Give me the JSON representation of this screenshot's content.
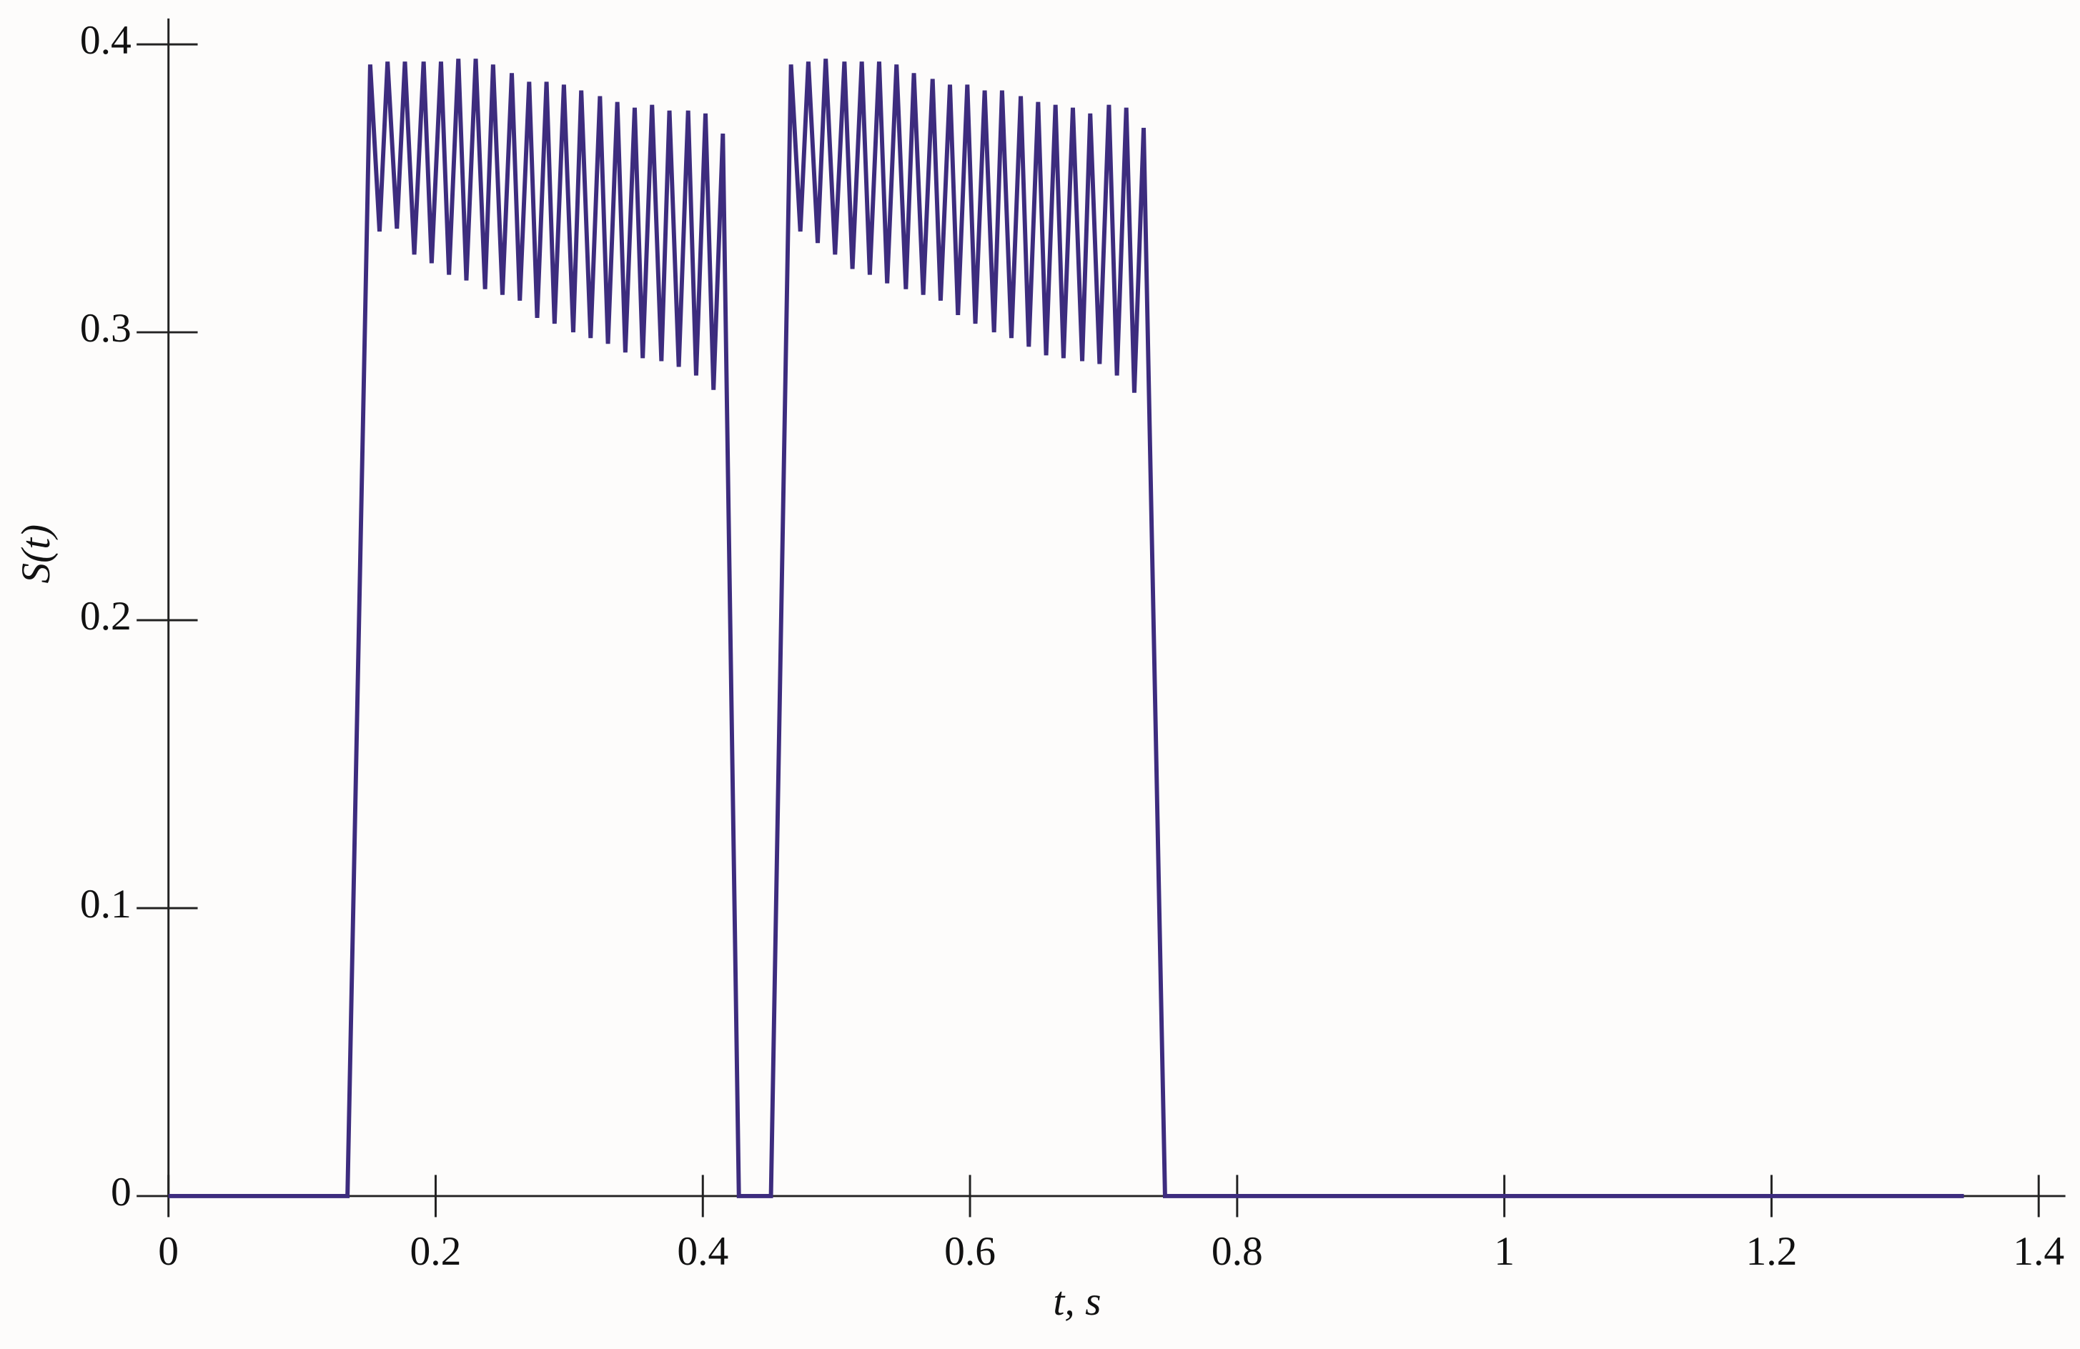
{
  "chart_data": {
    "type": "line",
    "xlabel": "t, s",
    "ylabel": "S(t)",
    "xlim": [
      0,
      1.42
    ],
    "ylim": [
      0,
      0.409
    ],
    "xticks": [
      0,
      0.2,
      0.4,
      0.6,
      0.8,
      1,
      1.2,
      1.4
    ],
    "yticks": [
      0,
      0.1,
      0.2,
      0.3,
      0.4
    ],
    "series": [
      {
        "color": "#3d2c7e",
        "x": [
          0,
          0.134,
          0.151,
          0.158,
          0.164,
          0.171,
          0.177,
          0.184,
          0.191,
          0.197,
          0.204,
          0.21,
          0.217,
          0.223,
          0.23,
          0.237,
          0.243,
          0.25,
          0.257,
          0.263,
          0.27,
          0.276,
          0.283,
          0.289,
          0.296,
          0.303,
          0.309,
          0.316,
          0.323,
          0.329,
          0.336,
          0.342,
          0.349,
          0.355,
          0.362,
          0.369,
          0.375,
          0.382,
          0.389,
          0.395,
          0.402,
          0.408,
          0.415,
          0.427,
          0.451,
          0.466,
          0.473,
          0.479,
          0.486,
          0.492,
          0.499,
          0.506,
          0.512,
          0.519,
          0.525,
          0.532,
          0.538,
          0.545,
          0.552,
          0.558,
          0.565,
          0.572,
          0.578,
          0.585,
          0.591,
          0.598,
          0.604,
          0.611,
          0.618,
          0.624,
          0.631,
          0.638,
          0.644,
          0.651,
          0.657,
          0.664,
          0.67,
          0.677,
          0.684,
          0.69,
          0.697,
          0.704,
          0.71,
          0.717,
          0.723,
          0.73,
          0.746,
          1.344
        ],
        "values": [
          0,
          0,
          0.393,
          0.335,
          0.394,
          0.336,
          0.394,
          0.327,
          0.394,
          0.324,
          0.394,
          0.32,
          0.395,
          0.318,
          0.395,
          0.315,
          0.393,
          0.313,
          0.39,
          0.311,
          0.387,
          0.305,
          0.387,
          0.303,
          0.386,
          0.3,
          0.384,
          0.298,
          0.382,
          0.296,
          0.38,
          0.293,
          0.378,
          0.291,
          0.379,
          0.29,
          0.377,
          0.288,
          0.377,
          0.285,
          0.376,
          0.28,
          0.369,
          0,
          0,
          0.393,
          0.335,
          0.394,
          0.331,
          0.395,
          0.327,
          0.394,
          0.322,
          0.394,
          0.32,
          0.394,
          0.317,
          0.393,
          0.315,
          0.39,
          0.313,
          0.388,
          0.311,
          0.386,
          0.306,
          0.386,
          0.303,
          0.384,
          0.3,
          0.384,
          0.298,
          0.382,
          0.295,
          0.38,
          0.292,
          0.379,
          0.291,
          0.378,
          0.29,
          0.376,
          0.289,
          0.379,
          0.285,
          0.378,
          0.279,
          0.371,
          0,
          0
        ]
      }
    ]
  }
}
